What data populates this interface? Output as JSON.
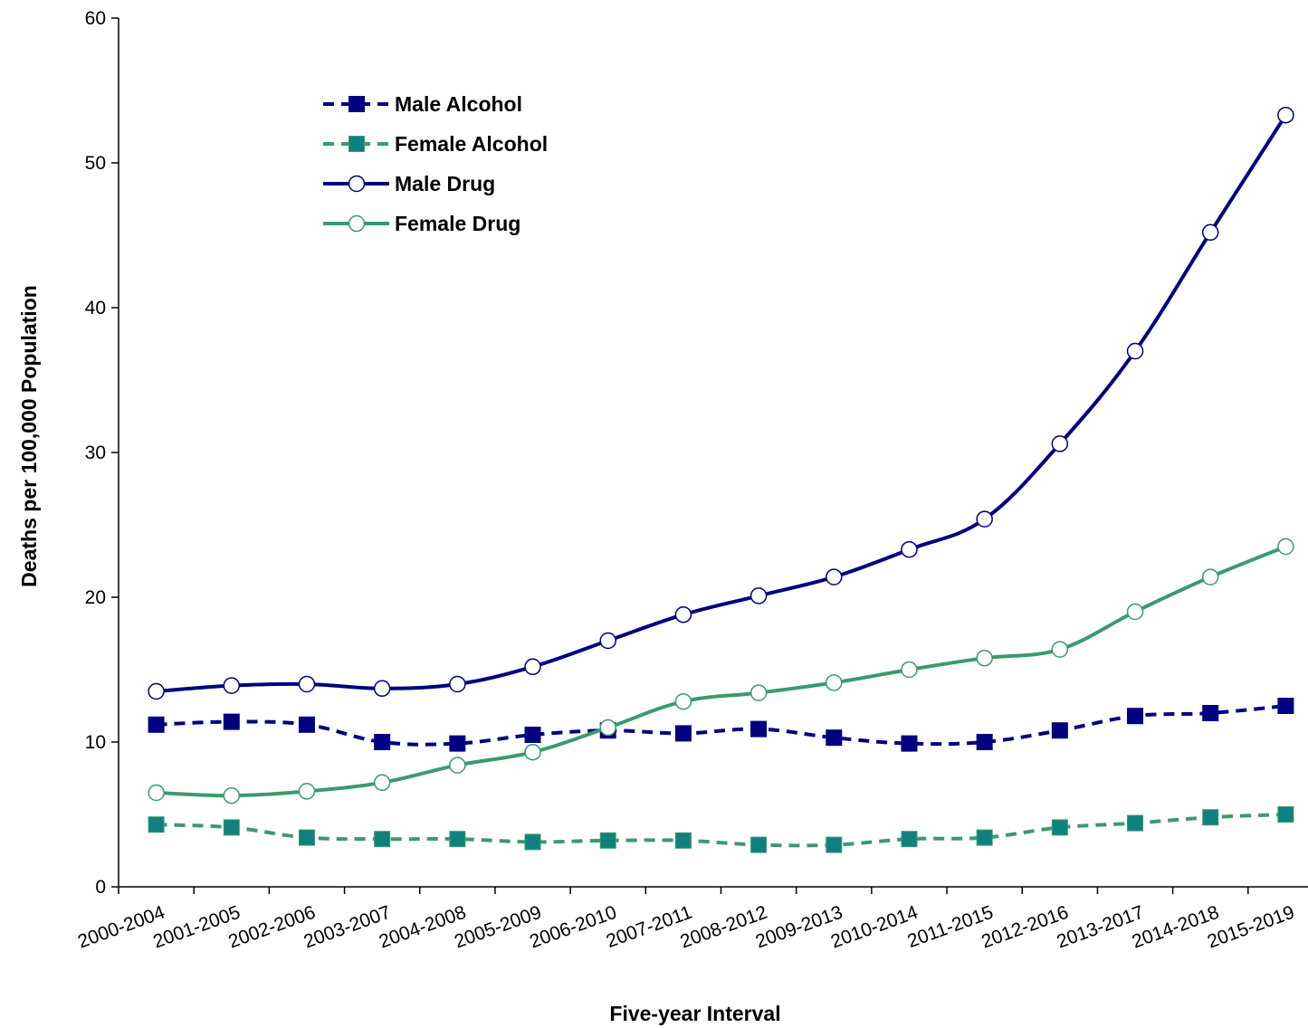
{
  "chart_data": {
    "type": "line",
    "title": "",
    "xlabel": "Five-year Interval",
    "ylabel": "Deaths per 100,000 Population",
    "ylim": [
      0,
      60
    ],
    "yticks": [
      "0",
      "10",
      "20",
      "30",
      "40",
      "50",
      "60"
    ],
    "grid": false,
    "legend_position": "top-left",
    "categories": [
      "2000-2004",
      "2001-2005",
      "2002-2006",
      "2003-2007",
      "2004-2008",
      "2005-2009",
      "2006-2010",
      "2007-2011",
      "2008-2012",
      "2009-2013",
      "2010-2014",
      "2011-2015",
      "2012-2016",
      "2013-2017",
      "2014-2018",
      "2015-2019"
    ],
    "series": [
      {
        "name": "Male Alcohol",
        "color": "#000080",
        "line": "dashed",
        "marker": "filled-square",
        "values": [
          11.2,
          11.4,
          11.2,
          10.0,
          9.9,
          10.5,
          10.8,
          10.6,
          10.9,
          10.3,
          9.9,
          10.0,
          10.8,
          11.8,
          12.0,
          12.5
        ]
      },
      {
        "name": "Female Alcohol",
        "color": "#3A9A6E",
        "marker_fill": "#108080",
        "line": "dashed",
        "marker": "filled-square",
        "values": [
          4.3,
          4.1,
          3.4,
          3.3,
          3.3,
          3.1,
          3.2,
          3.2,
          2.9,
          2.9,
          3.3,
          3.4,
          4.1,
          4.4,
          4.8,
          5.0
        ]
      },
      {
        "name": "Male Drug",
        "color": "#000080",
        "line": "solid",
        "marker": "open-circle",
        "values": [
          13.5,
          13.9,
          14.0,
          13.7,
          14.0,
          15.2,
          17.0,
          18.8,
          20.1,
          21.4,
          23.3,
          25.4,
          30.6,
          37.0,
          45.2,
          53.3
        ]
      },
      {
        "name": "Female Drug",
        "color": "#3A9A6E",
        "line": "solid",
        "marker": "open-circle",
        "values": [
          6.5,
          6.3,
          6.6,
          7.2,
          8.4,
          9.3,
          11.0,
          12.8,
          13.4,
          14.1,
          15.0,
          15.8,
          16.4,
          19.0,
          21.4,
          23.5
        ]
      }
    ]
  }
}
